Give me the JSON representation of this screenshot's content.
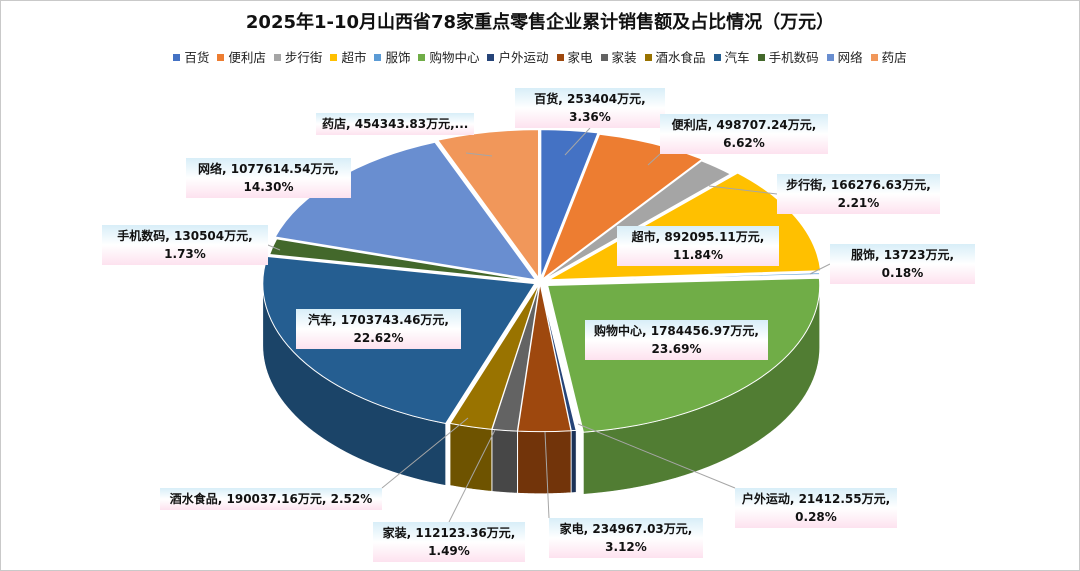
{
  "chart_data": {
    "type": "pie",
    "style": "3d-exploded-pie",
    "title": "2025年1-10月山西省78家重点零售企业累计销售额及占比情况（万元）",
    "legend_position": "top",
    "unit": "万元",
    "series": [
      {
        "name": "百货",
        "value": 253404,
        "value_text": "253404万元",
        "percent": "3.36%",
        "color": "#4472C4"
      },
      {
        "name": "便利店",
        "value": 498707.24,
        "value_text": "498707.24万元",
        "percent": "6.62%",
        "color": "#ED7D31"
      },
      {
        "name": "步行街",
        "value": 166276.63,
        "value_text": "166276.63万元",
        "percent": "2.21%",
        "color": "#A5A5A5"
      },
      {
        "name": "超市",
        "value": 892095.11,
        "value_text": "892095.11万元",
        "percent": "11.84%",
        "color": "#FFC000"
      },
      {
        "name": "服饰",
        "value": 13723,
        "value_text": "13723万元",
        "percent": "0.18%",
        "color": "#5B9BD5"
      },
      {
        "name": "购物中心",
        "value": 1784456.97,
        "value_text": "1784456.97万元",
        "percent": "23.69%",
        "color": "#70AD47"
      },
      {
        "name": "户外运动",
        "value": 21412.55,
        "value_text": "21412.55万元",
        "percent": "0.28%",
        "color": "#264478"
      },
      {
        "name": "家电",
        "value": 234967.03,
        "value_text": "234967.03万元",
        "percent": "3.12%",
        "color": "#9E480E"
      },
      {
        "name": "家装",
        "value": 112123.36,
        "value_text": "112123.36万元",
        "percent": "1.49%",
        "color": "#636363"
      },
      {
        "name": "酒水食品",
        "value": 190037.16,
        "value_text": "190037.16万元",
        "percent": "2.52%",
        "color": "#997300"
      },
      {
        "name": "汽车",
        "value": 1703743.46,
        "value_text": "1703743.46万元",
        "percent": "22.62%",
        "color": "#255E91"
      },
      {
        "name": "手机数码",
        "value": 130504,
        "value_text": "130504万元",
        "percent": "1.73%",
        "color": "#43682B"
      },
      {
        "name": "网络",
        "value": 1077614.54,
        "value_text": "1077614.54万元",
        "percent": "14.30%",
        "color": "#698ED0"
      },
      {
        "name": "药店",
        "value": 454343.83,
        "value_text": "454343.83万元,...",
        "percent": "",
        "color": "#F1975A"
      }
    ]
  }
}
